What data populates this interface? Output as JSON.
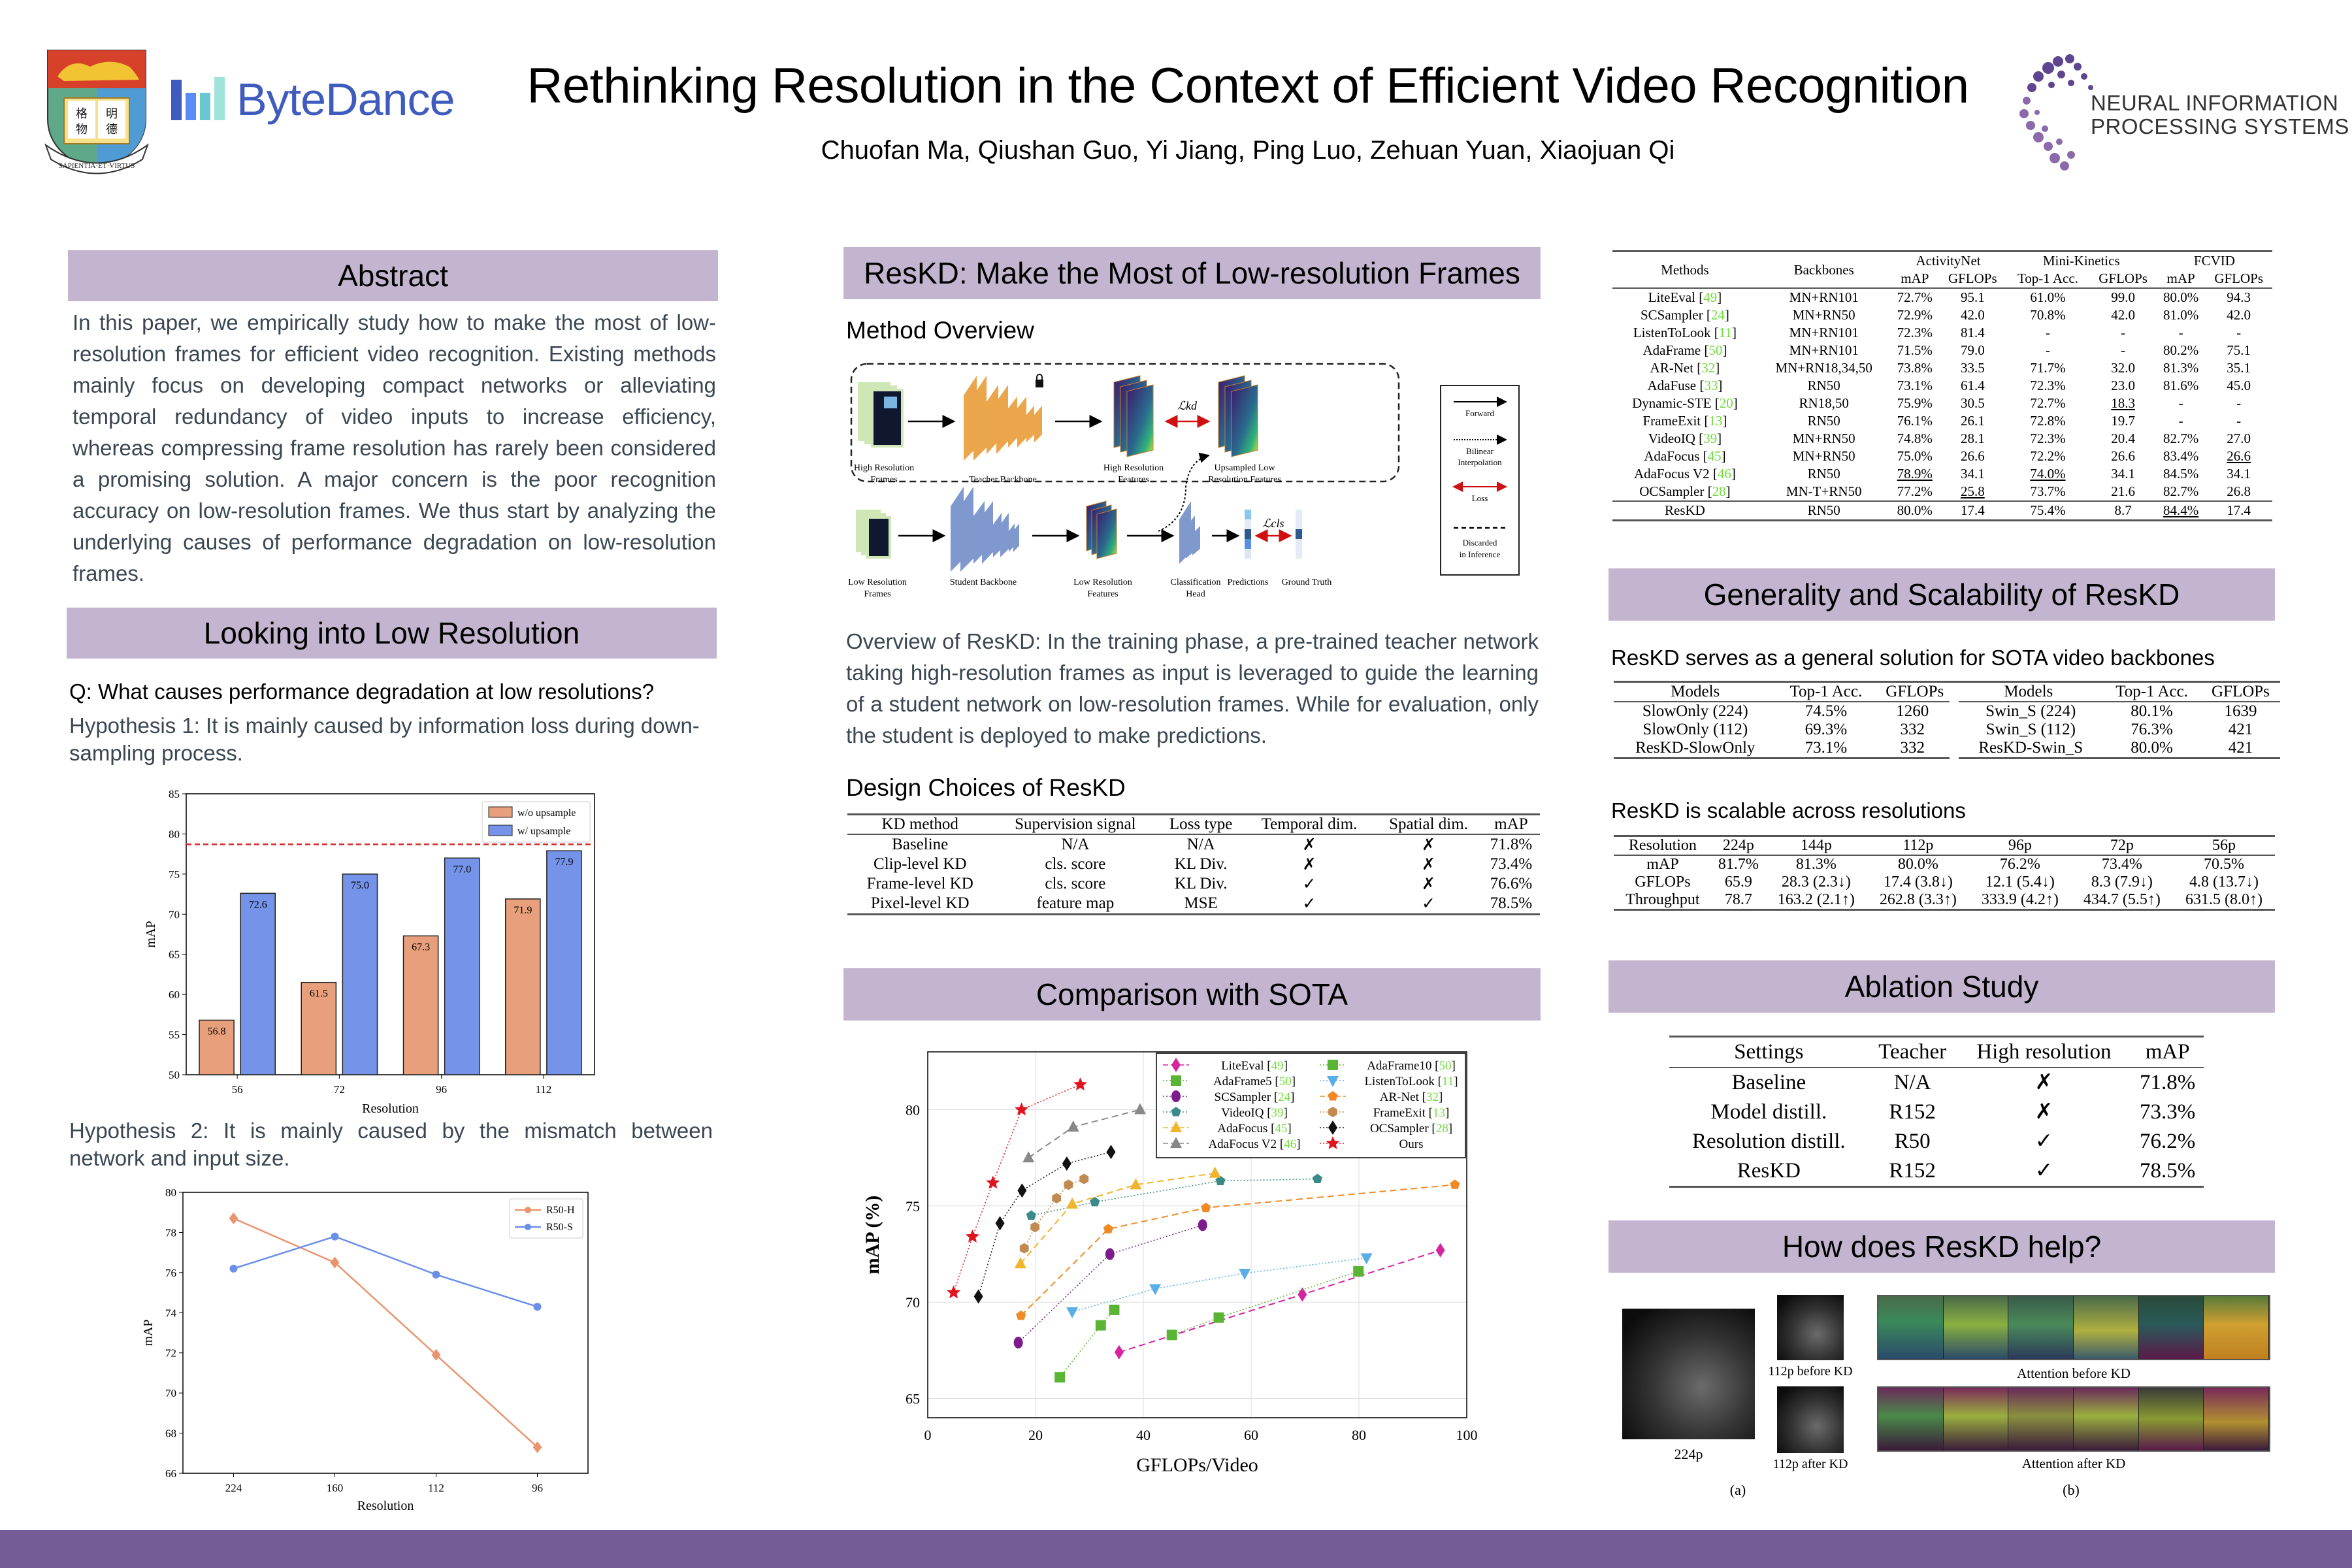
{
  "header": {
    "title": "Rethinking Resolution in the Context of Efficient Video Recognition",
    "authors": "Chuofan Ma, Qiushan Guo, Yi Jiang, Ping Luo, Zehuan Yuan, Xiaojuan Qi",
    "logos": {
      "hku_motto": "SAPIENTIA·ET·VIRTUS",
      "hku_chars": [
        "格",
        "明",
        "物",
        "德"
      ],
      "bytedance": "ByteDance",
      "neurips_line1": "NEURAL INFORMATION",
      "neurips_line2": "PROCESSING SYSTEMS"
    }
  },
  "colors": {
    "section_header": "#c3b5d0",
    "bottom_bar": "#745c96",
    "body_text": "#3a4652",
    "bar_orange": "#e8a07c",
    "bar_blue": "#7593e8",
    "citation_green": "#6fdc3c"
  },
  "abstract": {
    "heading": "Abstract",
    "text": "In this paper, we empirically study how to make the most of low-resolution frames for efficient video recognition. Existing methods mainly focus on developing compact networks or alleviating temporal redundancy of video inputs to increase efficiency, whereas compressing frame resolution has rarely been considered a promising solution. A major concern is the poor recognition accuracy on low-resolution frames. We thus start by analyzing the underlying causes of performance degradation on low-resolution frames."
  },
  "low_res": {
    "heading": "Looking into Low Resolution",
    "question": "Q: What causes performance degradation at low resolutions?",
    "hypothesis1": "Hypothesis 1: It is mainly caused by information loss during down-sampling process.",
    "hypothesis2": "Hypothesis 2: It is mainly caused by the mismatch between network and input size."
  },
  "method": {
    "heading": "ResKD: Make the Most of Low-resolution Frames",
    "overview_heading": "Method Overview",
    "overview_text": "Overview of ResKD: In the training phase, a pre-trained teacher network taking high-resolution frames as input is leveraged to guide the learning of a student network on low-resolution frames. While for evaluation, only the student is deployed to make predictions.",
    "diagram": {
      "high_res_frames": [
        "High Resolution",
        "Frames"
      ],
      "teacher_backbone": "Teacher Backbone",
      "high_res_features": [
        "High Resolution",
        "Features"
      ],
      "upsampled_features": [
        "Upsampled Low",
        "Resolution Features"
      ],
      "low_res_frames": [
        "Low Resolution",
        "Frames"
      ],
      "student_backbone": "Student Backbone",
      "low_res_features": [
        "Low Resolution",
        "Features"
      ],
      "cls_head": [
        "Classification",
        "Head"
      ],
      "predictions": "Predictions",
      "ground_truth": "Ground Truth",
      "loss_kd": "ℒkd",
      "loss_cls": "ℒcls",
      "legend": {
        "forward": "Forward",
        "bilinear": [
          "Bilinear",
          "Interpolation"
        ],
        "loss": "Loss",
        "discarded": [
          "Discarded",
          "in Inference"
        ]
      }
    },
    "design_heading": "Design Choices of ResKD",
    "design_table": {
      "headers": [
        "KD method",
        "Supervision signal",
        "Loss type",
        "Temporal dim.",
        "Spatial dim.",
        "mAP"
      ],
      "rows": [
        [
          "Baseline",
          "N/A",
          "N/A",
          "✗",
          "✗",
          "71.8%"
        ],
        [
          "Clip-level KD",
          "cls. score",
          "KL Div.",
          "✗",
          "✗",
          "73.4%"
        ],
        [
          "Frame-level KD",
          "cls. score",
          "KL Div.",
          "✓",
          "✗",
          "76.6%"
        ],
        [
          "Pixel-level KD",
          "feature map",
          "MSE",
          "✓",
          "✓",
          "78.5%"
        ]
      ]
    }
  },
  "sota": {
    "heading": "Comparison with SOTA",
    "table": {
      "group_headers": [
        "ActivityNet",
        "Mini-Kinetics",
        "FCVID"
      ],
      "headers": [
        "Methods",
        "Backbones",
        "mAP",
        "GFLOPs",
        "Top-1 Acc.",
        "GFLOPs",
        "mAP",
        "GFLOPs"
      ],
      "rows": [
        {
          "method": "LiteEval",
          "cite": "49",
          "cells": [
            "MN+RN101",
            "72.7%",
            "95.1",
            "61.0%",
            "99.0",
            "80.0%",
            "94.3"
          ]
        },
        {
          "method": "SCSampler",
          "cite": "24",
          "cells": [
            "MN+RN50",
            "72.9%",
            "42.0",
            "70.8%",
            "42.0",
            "81.0%",
            "42.0"
          ]
        },
        {
          "method": "ListenToLook",
          "cite": "11",
          "cells": [
            "MN+RN101",
            "72.3%",
            "81.4",
            "-",
            "-",
            "-",
            "-"
          ]
        },
        {
          "method": "AdaFrame",
          "cite": "50",
          "cells": [
            "MN+RN101",
            "71.5%",
            "79.0",
            "-",
            "-",
            "80.2%",
            "75.1"
          ]
        },
        {
          "method": "AR-Net",
          "cite": "32",
          "cells": [
            "MN+RN18,34,50",
            "73.8%",
            "33.5",
            "71.7%",
            "32.0",
            "81.3%",
            "35.1"
          ]
        },
        {
          "method": "AdaFuse",
          "cite": "33",
          "cells": [
            "RN50",
            "73.1%",
            "61.4",
            "72.3%",
            "23.0",
            "81.6%",
            "45.0"
          ]
        },
        {
          "method": "Dynamic-STE",
          "cite": "20",
          "cells": [
            "RN18,50",
            "75.9%",
            "30.5",
            "72.7%",
            "18.3",
            "-",
            "-"
          ]
        },
        {
          "method": "FrameExit",
          "cite": "13",
          "cells": [
            "RN50",
            "76.1%",
            "26.1",
            "72.8%",
            "19.7",
            "-",
            "-"
          ]
        },
        {
          "method": "VideoIQ",
          "cite": "39",
          "cells": [
            "MN+RN50",
            "74.8%",
            "28.1",
            "72.3%",
            "20.4",
            "82.7%",
            "27.0"
          ]
        },
        {
          "method": "AdaFocus",
          "cite": "45",
          "cells": [
            "MN+RN50",
            "75.0%",
            "26.6",
            "72.2%",
            "26.6",
            "83.4%",
            "26.6"
          ]
        },
        {
          "method": "AdaFocus V2",
          "cite": "46",
          "cells": [
            "RN50",
            "78.9%",
            "34.1",
            "74.0%",
            "34.1",
            "84.5%",
            "34.1"
          ]
        },
        {
          "method": "OCSampler",
          "cite": "28",
          "cells": [
            "MN-T+RN50",
            "77.2%",
            "25.8",
            "73.7%",
            "21.6",
            "82.7%",
            "26.8"
          ]
        },
        {
          "method": "ResKD",
          "cite": "",
          "cells": [
            "RN50",
            "80.0%",
            "17.4",
            "75.4%",
            "8.7",
            "84.4%",
            "17.4"
          ]
        }
      ]
    }
  },
  "generality": {
    "heading": "Generality and Scalability of ResKD",
    "general_heading": "ResKD serves as a general solution for SOTA video backbones",
    "backbone_table": {
      "headers": [
        "Models",
        "Top-1 Acc.",
        "GFLOPs",
        "Models",
        "Top-1 Acc.",
        "GFLOPs"
      ],
      "rows": [
        [
          "SlowOnly (224)",
          "74.5%",
          "1260",
          "Swin_S (224)",
          "80.1%",
          "1639"
        ],
        [
          "SlowOnly (112)",
          "69.3%",
          "332",
          "Swin_S (112)",
          "76.3%",
          "421"
        ],
        [
          "ResKD-SlowOnly",
          "73.1%",
          "332",
          "ResKD-Swin_S",
          "80.0%",
          "421"
        ]
      ]
    },
    "scalable_heading": "ResKD is scalable across resolutions",
    "scale_table": {
      "headers": [
        "Resolution",
        "224p",
        "144p",
        "112p",
        "96p",
        "72p",
        "56p"
      ],
      "rows": [
        [
          "mAP",
          "81.7%",
          "81.3%",
          "80.0%",
          "76.2%",
          "73.4%",
          "70.5%"
        ],
        [
          "GFLOPs",
          "65.9",
          "28.3 (2.3↓)",
          "17.4 (3.8↓)",
          "12.1 (5.4↓)",
          "8.3 (7.9↓)",
          "4.8 (13.7↓)"
        ],
        [
          "Throughput",
          "78.7",
          "163.2 (2.1↑)",
          "262.8 (3.3↑)",
          "333.9 (4.2↑)",
          "434.7 (5.5↑)",
          "631.5 (8.0↑)"
        ]
      ]
    }
  },
  "ablation": {
    "heading": "Ablation Study",
    "table": {
      "headers": [
        "Settings",
        "Teacher",
        "High resolution",
        "mAP"
      ],
      "rows": [
        [
          "Baseline",
          "N/A",
          "✗",
          "71.8%"
        ],
        [
          "Model distill.",
          "R152",
          "✗",
          "73.3%"
        ],
        [
          "Resolution distill.",
          "R50",
          "✓",
          "76.2%"
        ],
        [
          "ResKD",
          "R152",
          "✓",
          "78.5%"
        ]
      ]
    }
  },
  "help": {
    "heading": "How does ResKD help?",
    "labels": {
      "p224": "224p",
      "before": "112p before KD",
      "after": "112p after KD",
      "att_before": "Attention before KD",
      "att_after": "Attention after KD",
      "a": "(a)",
      "b": "(b)"
    }
  },
  "chart_data": [
    {
      "id": "upsample-bar",
      "type": "bar",
      "title": "",
      "xlabel": "Resolution",
      "ylabel": "mAP",
      "categories": [
        "56",
        "72",
        "96",
        "112"
      ],
      "series": [
        {
          "name": "w/o upsample",
          "color": "#e8a07c",
          "values": [
            56.8,
            61.5,
            67.3,
            71.9
          ]
        },
        {
          "name": "w/ upsample",
          "color": "#7593e8",
          "values": [
            72.6,
            75.0,
            77.0,
            77.9
          ]
        }
      ],
      "reference_line": {
        "value": 78.7,
        "color": "#d62728",
        "style": "dashed"
      },
      "ylim": [
        50,
        85
      ],
      "yticks": [
        50,
        55,
        60,
        65,
        70,
        75,
        80,
        85
      ],
      "legend": "top-right",
      "grid": false
    },
    {
      "id": "network-line",
      "type": "line",
      "title": "",
      "xlabel": "Resolution",
      "ylabel": "mAP",
      "categories": [
        "224",
        "160",
        "112",
        "96"
      ],
      "series": [
        {
          "name": "R50-H",
          "color": "#e8956f",
          "marker": "diamond",
          "values": [
            78.7,
            76.5,
            71.9,
            67.3
          ]
        },
        {
          "name": "R50-S",
          "color": "#6b8ee8",
          "marker": "hexagon",
          "values": [
            76.2,
            77.8,
            75.9,
            74.3
          ]
        }
      ],
      "ylim": [
        66,
        80
      ],
      "yticks": [
        66,
        68,
        70,
        72,
        74,
        76,
        78,
        80
      ],
      "legend": "top-right",
      "grid": false
    },
    {
      "id": "sota-scatter",
      "type": "scatter",
      "title": "",
      "xlabel": "GFLOPs/Video",
      "ylabel": "mAP (%)",
      "xlim": [
        0,
        100
      ],
      "ylim": [
        64,
        83
      ],
      "xticks": [
        0,
        20,
        40,
        60,
        80,
        100
      ],
      "yticks": [
        65,
        70,
        75,
        80
      ],
      "legend": "top-right",
      "grid": true,
      "series": [
        {
          "name": "LiteEval",
          "cite": "49",
          "color": "#d6249f",
          "marker": "diamond",
          "line": "dashed",
          "x": [
            35.5,
            69.5,
            95.1
          ],
          "y": [
            67.4,
            70.4,
            72.7
          ]
        },
        {
          "name": "AdaFrame5",
          "cite": "50",
          "color": "#5bb534",
          "marker": "square",
          "line": "dotted",
          "x": [
            24.5,
            32.1,
            34.6
          ],
          "y": [
            66.1,
            68.8,
            69.6
          ]
        },
        {
          "name": "SCSampler",
          "cite": "24",
          "color": "#7b1c8a",
          "marker": "circle",
          "line": "dotted",
          "x": [
            16.8,
            33.8,
            51.0
          ],
          "y": [
            67.9,
            72.5,
            74.0
          ]
        },
        {
          "name": "VideoIQ",
          "cite": "39",
          "color": "#3a8a8a",
          "marker": "pentagon",
          "line": "dotted",
          "x": [
            19.2,
            31.0,
            54.3,
            72.3
          ],
          "y": [
            74.5,
            75.2,
            76.3,
            76.4
          ]
        },
        {
          "name": "AdaFocus",
          "cite": "45",
          "color": "#f0b52c",
          "marker": "triangle-up",
          "line": "dashed",
          "x": [
            17.2,
            26.8,
            38.6,
            53.3
          ],
          "y": [
            72.0,
            75.1,
            76.1,
            76.7
          ]
        },
        {
          "name": "AdaFocus V2",
          "cite": "46",
          "color": "#888888",
          "marker": "triangle-up",
          "line": "dashed",
          "x": [
            18.7,
            27.0,
            39.4
          ],
          "y": [
            77.5,
            79.1,
            80.0
          ]
        },
        {
          "name": "AdaFrame10",
          "cite": "50",
          "color": "#5bb534",
          "marker": "square",
          "line": "dotted",
          "x": [
            45.3,
            54.0,
            79.9
          ],
          "y": [
            68.3,
            69.2,
            71.6
          ]
        },
        {
          "name": "ListenToLook",
          "cite": "11",
          "color": "#5aaee8",
          "marker": "triangle-down",
          "line": "dotted",
          "x": [
            26.8,
            42.2,
            58.8,
            81.4
          ],
          "y": [
            69.5,
            70.7,
            71.5,
            72.3
          ]
        },
        {
          "name": "AR-Net",
          "cite": "32",
          "color": "#f08a24",
          "marker": "pentagon",
          "line": "dashed",
          "x": [
            17.3,
            33.5,
            51.6,
            97.8
          ],
          "y": [
            69.3,
            73.8,
            74.9,
            76.1
          ]
        },
        {
          "name": "FrameExit",
          "cite": "13",
          "color": "#c08a50",
          "marker": "hexagon",
          "line": "dotted",
          "x": [
            17.9,
            19.9,
            23.9,
            26.1,
            29.0
          ],
          "y": [
            72.8,
            73.9,
            75.4,
            76.1,
            76.4
          ]
        },
        {
          "name": "OCSampler",
          "cite": "28",
          "color": "#111111",
          "marker": "diamond",
          "line": "dotted",
          "x": [
            9.4,
            13.4,
            17.5,
            25.8,
            34.0
          ],
          "y": [
            70.3,
            74.1,
            75.8,
            77.2,
            77.8
          ]
        },
        {
          "name": "Ours",
          "cite": "",
          "color": "#e0141e",
          "marker": "star",
          "line": "dotted",
          "x": [
            4.8,
            8.3,
            12.1,
            17.4,
            28.3
          ],
          "y": [
            70.5,
            73.4,
            76.2,
            80.0,
            81.3
          ]
        }
      ]
    }
  ]
}
